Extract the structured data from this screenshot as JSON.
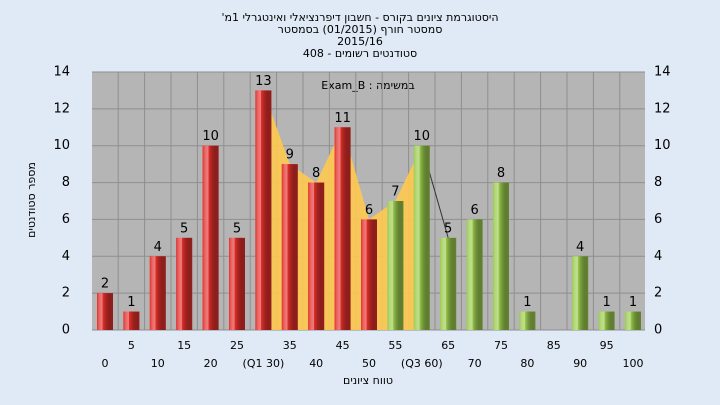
{
  "chart_data": {
    "type": "bar",
    "title": [
      "היסטוגרמת ציונים בקורס - חשבון דיפרנציאלי ואינטגרלי 1מ'",
      "סמסטר חורף  (01/2015)  בסמסטר",
      "2015/16",
      "סטודנטים רשומים - 408"
    ],
    "annotation": "במשימה : Exam_B",
    "x_label": "טווח ציונים",
    "y_label": "מספר סטודנטים",
    "categories": [
      "0",
      "5",
      "10",
      "15",
      "20",
      "25",
      "(Q1 30)",
      "35",
      "40",
      "45",
      "50",
      "55",
      "(Q3 60)",
      "65",
      "70",
      "75",
      "80",
      "85",
      "90",
      "95",
      "100"
    ],
    "values": [
      2,
      1,
      4,
      5,
      10,
      5,
      13,
      9,
      8,
      11,
      6,
      7,
      10,
      5,
      6,
      8,
      1,
      0,
      4,
      1,
      1
    ],
    "colors": [
      "#e3302c",
      "#e3302c",
      "#e3302c",
      "#e3302c",
      "#e3302c",
      "#e3302c",
      "#e3302c",
      "#e3302c",
      "#e3302c",
      "#e3302c",
      "#e3302c",
      "#9bcb4e",
      "#9bcb4e",
      "#9bcb4e",
      "#9bcb4e",
      "#9bcb4e",
      "#9bcb4e",
      "#9bcb4e",
      "#9bcb4e",
      "#9bcb4e",
      "#9bcb4e"
    ],
    "area_color": "#ffc94f",
    "ylim": [
      0,
      14
    ],
    "yticks": [
      0,
      2,
      4,
      6,
      8,
      10,
      12,
      14
    ],
    "y2lim": [
      0,
      14
    ],
    "y2ticks": [
      0,
      2,
      4,
      6,
      8,
      10,
      12,
      14
    ],
    "grid": true
  }
}
